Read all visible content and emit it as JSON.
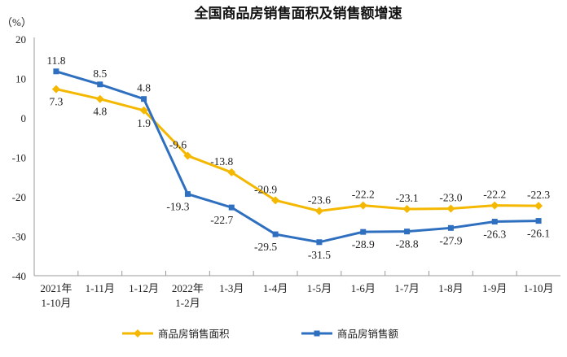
{
  "chart_data": {
    "type": "line",
    "title": "全国商品房销售面积及销售额增速",
    "ylabel": "（%）",
    "xlabel": "",
    "ylim": [
      -40,
      20
    ],
    "yticks": [
      20,
      10,
      0,
      -10,
      -20,
      -30,
      -40
    ],
    "grid": false,
    "legend": "bottom",
    "categories": [
      [
        "2021年",
        "1-10月"
      ],
      [
        "1-11月"
      ],
      [
        "1-12月"
      ],
      [
        "2022年",
        "1-2月"
      ],
      [
        "1-3月"
      ],
      [
        "1-4月"
      ],
      [
        "1-5月"
      ],
      [
        "1-6月"
      ],
      [
        "1-7月"
      ],
      [
        "1-8月"
      ],
      [
        "1-9月"
      ],
      [
        "1-10月"
      ]
    ],
    "series": [
      {
        "name": "商品房销售面积",
        "color": "#f5b800",
        "marker": "diamond",
        "values": [
          7.3,
          4.8,
          1.9,
          -9.6,
          -13.8,
          -20.9,
          -23.6,
          -22.2,
          -23.1,
          -23.0,
          -22.2,
          -22.3
        ]
      },
      {
        "name": "商品房销售额",
        "color": "#2e6fc0",
        "marker": "square",
        "values": [
          11.8,
          8.5,
          4.8,
          -19.3,
          -22.7,
          -29.5,
          -31.5,
          -28.9,
          -28.8,
          -27.9,
          -26.3,
          -26.1
        ]
      }
    ]
  }
}
